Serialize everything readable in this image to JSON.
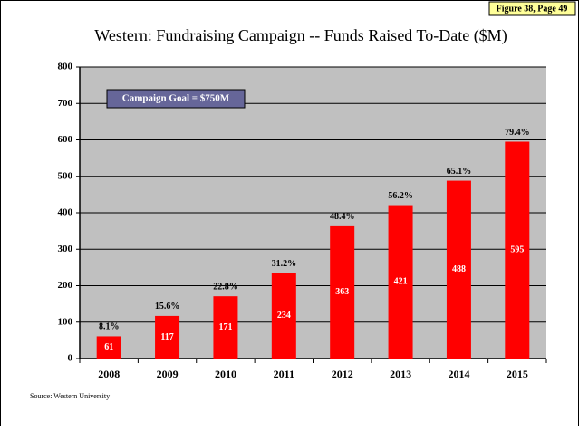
{
  "chart_data": {
    "type": "bar",
    "figure_label": "Figure 38, Page 49",
    "title": "Western: Fundraising Campaign -- Funds Raised To-Date ($M)",
    "annotation": "Campaign Goal  = $750M",
    "source": "Source:  Western University",
    "categories": [
      "2008",
      "2009",
      "2010",
      "2011",
      "2012",
      "2013",
      "2014",
      "2015"
    ],
    "values": [
      61,
      117,
      171,
      234,
      363,
      421,
      488,
      595
    ],
    "percent_labels": [
      "8.1%",
      "15.6%",
      "22.8%",
      "31.2%",
      "48.4%",
      "56.2%",
      "65.1%",
      "79.4%"
    ],
    "color": "#ff0000",
    "ylim": [
      0,
      800
    ],
    "yticks": [
      0,
      100,
      200,
      300,
      400,
      500,
      600,
      700,
      800
    ],
    "grid": true
  }
}
